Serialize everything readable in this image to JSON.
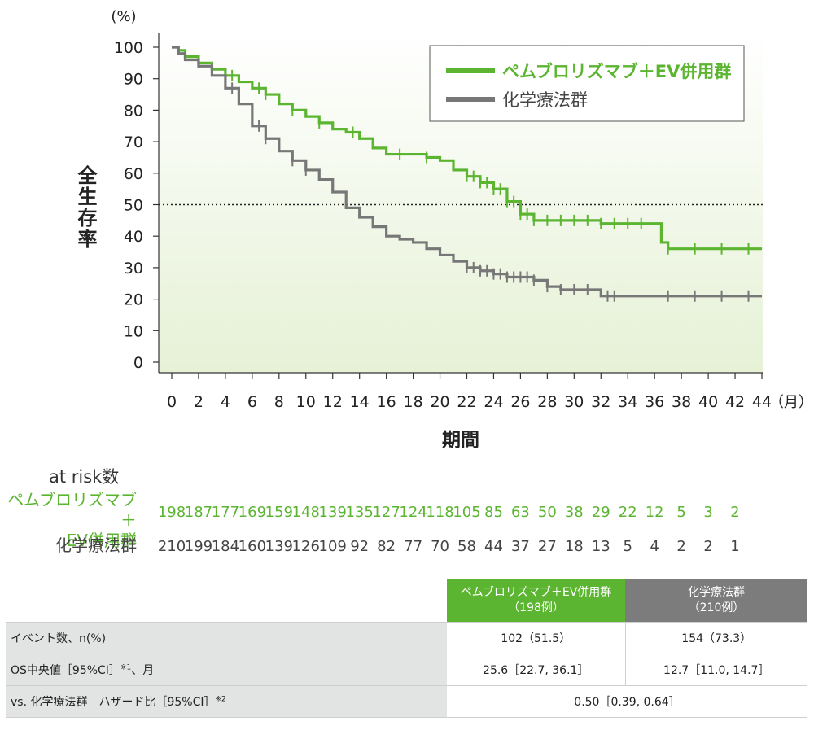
{
  "chart_data": {
    "type": "line",
    "step": true,
    "ylabel": "全生存率",
    "yunit": "(%)",
    "xlabel": "期間",
    "xunit": "（月）",
    "xlim": [
      0,
      44
    ],
    "ylim": [
      0,
      100
    ],
    "xticks": [
      0,
      2,
      4,
      6,
      8,
      10,
      12,
      14,
      16,
      18,
      20,
      22,
      24,
      26,
      28,
      30,
      32,
      34,
      36,
      38,
      40,
      42,
      44
    ],
    "yticks": [
      0,
      10,
      20,
      30,
      40,
      50,
      60,
      70,
      80,
      90,
      100
    ],
    "reference_line": {
      "y": 50,
      "style": "dotted"
    },
    "legend_position": "top-right",
    "series": [
      {
        "name": "ペムブロリズマブ＋EV併用群",
        "color": "#5cb531",
        "points": [
          [
            0,
            100
          ],
          [
            0.5,
            99
          ],
          [
            1,
            97
          ],
          [
            2,
            95
          ],
          [
            3,
            93
          ],
          [
            4,
            91
          ],
          [
            5,
            89
          ],
          [
            6,
            87
          ],
          [
            7,
            85
          ],
          [
            8,
            82
          ],
          [
            9,
            80
          ],
          [
            10,
            78
          ],
          [
            11,
            76
          ],
          [
            12,
            74
          ],
          [
            13,
            73
          ],
          [
            14,
            71
          ],
          [
            15,
            68
          ],
          [
            16,
            66
          ],
          [
            18,
            66
          ],
          [
            19,
            65
          ],
          [
            20,
            64
          ],
          [
            21,
            61
          ],
          [
            22,
            59
          ],
          [
            23,
            57
          ],
          [
            24,
            55
          ],
          [
            25,
            51
          ],
          [
            26,
            47
          ],
          [
            27,
            45
          ],
          [
            30,
            45
          ],
          [
            32,
            44
          ],
          [
            36,
            44
          ],
          [
            36.5,
            38
          ],
          [
            37,
            36
          ],
          [
            44,
            36
          ]
        ],
        "censor_x": [
          4.5,
          6.5,
          7,
          9,
          11,
          13.5,
          17,
          19,
          22,
          22.5,
          23,
          23.5,
          24,
          24.5,
          25,
          25.5,
          26,
          26.5,
          27,
          28,
          29,
          30,
          31,
          32,
          33,
          34,
          35,
          37,
          39,
          41,
          43
        ]
      },
      {
        "name": "化学療法群",
        "color": "#777777",
        "points": [
          [
            0,
            100
          ],
          [
            0.5,
            98
          ],
          [
            1,
            96
          ],
          [
            2,
            94
          ],
          [
            3,
            91
          ],
          [
            4,
            87
          ],
          [
            5,
            82
          ],
          [
            6,
            75
          ],
          [
            7,
            71
          ],
          [
            8,
            67
          ],
          [
            9,
            64
          ],
          [
            10,
            61
          ],
          [
            11,
            58
          ],
          [
            12,
            54
          ],
          [
            13,
            49
          ],
          [
            14,
            46
          ],
          [
            15,
            43
          ],
          [
            16,
            40
          ],
          [
            17,
            39
          ],
          [
            18,
            38
          ],
          [
            19,
            36
          ],
          [
            20,
            34
          ],
          [
            21,
            32
          ],
          [
            22,
            30
          ],
          [
            23,
            29
          ],
          [
            24,
            28
          ],
          [
            25,
            27
          ],
          [
            27,
            26
          ],
          [
            28,
            24
          ],
          [
            29,
            23
          ],
          [
            31,
            23
          ],
          [
            32,
            21
          ],
          [
            44,
            21
          ]
        ],
        "censor_x": [
          4.5,
          6.5,
          7,
          9,
          10,
          22,
          22.5,
          23,
          23.5,
          24,
          24.5,
          25,
          25.5,
          26,
          26.5,
          27,
          28,
          29,
          30,
          31,
          32.5,
          33,
          37,
          39,
          41,
          43
        ]
      }
    ],
    "at_risk": {
      "title": "at risk数",
      "groups": [
        {
          "label_lines": [
            "ペムブロリズマブ＋",
            "EV併用群"
          ],
          "color": "#5cb531",
          "values": [
            "198",
            "187",
            "177",
            "169",
            "159",
            "148",
            "139",
            "135",
            "127",
            "124",
            "118",
            "105",
            "85",
            "63",
            "50",
            "38",
            "29",
            "22",
            "12",
            "5",
            "3",
            "2"
          ]
        },
        {
          "label_lines": [
            "化学療法群"
          ],
          "color": "#444444",
          "values": [
            "210",
            "199",
            "184",
            "160",
            "139",
            "126",
            "109",
            "92",
            "82",
            "77",
            "70",
            "58",
            "44",
            "37",
            "27",
            "18",
            "13",
            "5",
            "4",
            "2",
            "2",
            "1"
          ]
        }
      ]
    }
  },
  "table": {
    "header": {
      "g1_line1": "ペムブロリズマブ＋EV併用群",
      "g1_line2": "（198例）",
      "g2_line1": "化学療法群",
      "g2_line2": "（210例）"
    },
    "rows": [
      {
        "label": "イベント数、n(%)",
        "g1": "102（51.5）",
        "g2": "154（73.3）"
      },
      {
        "label": "OS中央値［95%CI］",
        "label_sup": "※1",
        "label_tail": "、月",
        "g1": "25.6［22.7, 36.1］",
        "g2": "12.7［11.0, 14.7］"
      },
      {
        "label": "vs. 化学療法群　ハザード比［95%CI］",
        "label_sup": "※2",
        "combined": "0.50［0.39, 0.64］"
      }
    ]
  }
}
